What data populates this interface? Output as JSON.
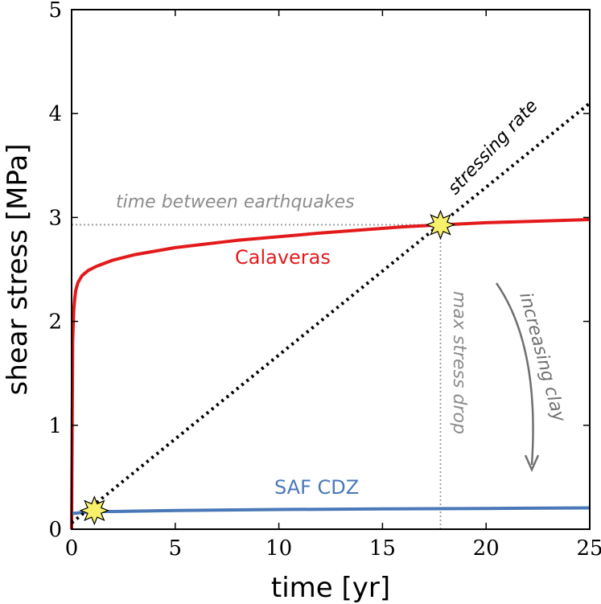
{
  "chart_data": {
    "type": "line",
    "xlabel": "time [yr]",
    "ylabel": "shear stress [MPa]",
    "xlim": [
      0,
      25
    ],
    "ylim": [
      0,
      5
    ],
    "xticks": [
      "0",
      "5",
      "10",
      "15",
      "20",
      "25"
    ],
    "yticks": [
      "0",
      "1",
      "2",
      "3",
      "4",
      "5"
    ],
    "grid": false,
    "series": [
      {
        "name": "Calaveras",
        "color": "#e31a1c",
        "x": [
          0,
          0.05,
          0.1,
          0.15,
          0.2,
          0.3,
          0.5,
          0.8,
          1.2,
          2,
          3,
          5,
          8,
          12,
          16,
          20,
          25
        ],
        "y": [
          0,
          1.8,
          2.1,
          2.22,
          2.3,
          2.37,
          2.44,
          2.49,
          2.53,
          2.59,
          2.64,
          2.71,
          2.78,
          2.85,
          2.91,
          2.95,
          2.98
        ]
      },
      {
        "name": "SAF CDZ",
        "color": "#4a78b8",
        "x": [
          0,
          0.5,
          1,
          2,
          5,
          10,
          15,
          20,
          25
        ],
        "y": [
          0.15,
          0.16,
          0.17,
          0.17,
          0.18,
          0.19,
          0.195,
          0.2,
          0.205
        ]
      },
      {
        "name": "stressing rate",
        "color": "#000000",
        "style": "dotted",
        "x": [
          0,
          25
        ],
        "y": [
          0.06,
          4.1
        ]
      }
    ],
    "markers": [
      {
        "x": 1.1,
        "y": 0.18,
        "symbol": "star",
        "color": "#f7f06a"
      },
      {
        "x": 17.8,
        "y": 2.93,
        "symbol": "star",
        "color": "#f7f06a"
      }
    ],
    "reference_lines": {
      "horizontal": {
        "y": 2.93,
        "x_from": 0,
        "x_to": 17.8,
        "color": "#999999"
      },
      "vertical": {
        "x": 17.8,
        "y_from": 0,
        "y_to": 2.93,
        "color": "#999999"
      }
    },
    "annotations": {
      "time_between": "time between earthquakes",
      "stressing_rate": "stressing rate",
      "max_stress_drop": "max stress drop",
      "increasing_clay": "increasing clay",
      "calaveras": "Calaveras",
      "saf_cdz": "SAF CDZ"
    }
  }
}
